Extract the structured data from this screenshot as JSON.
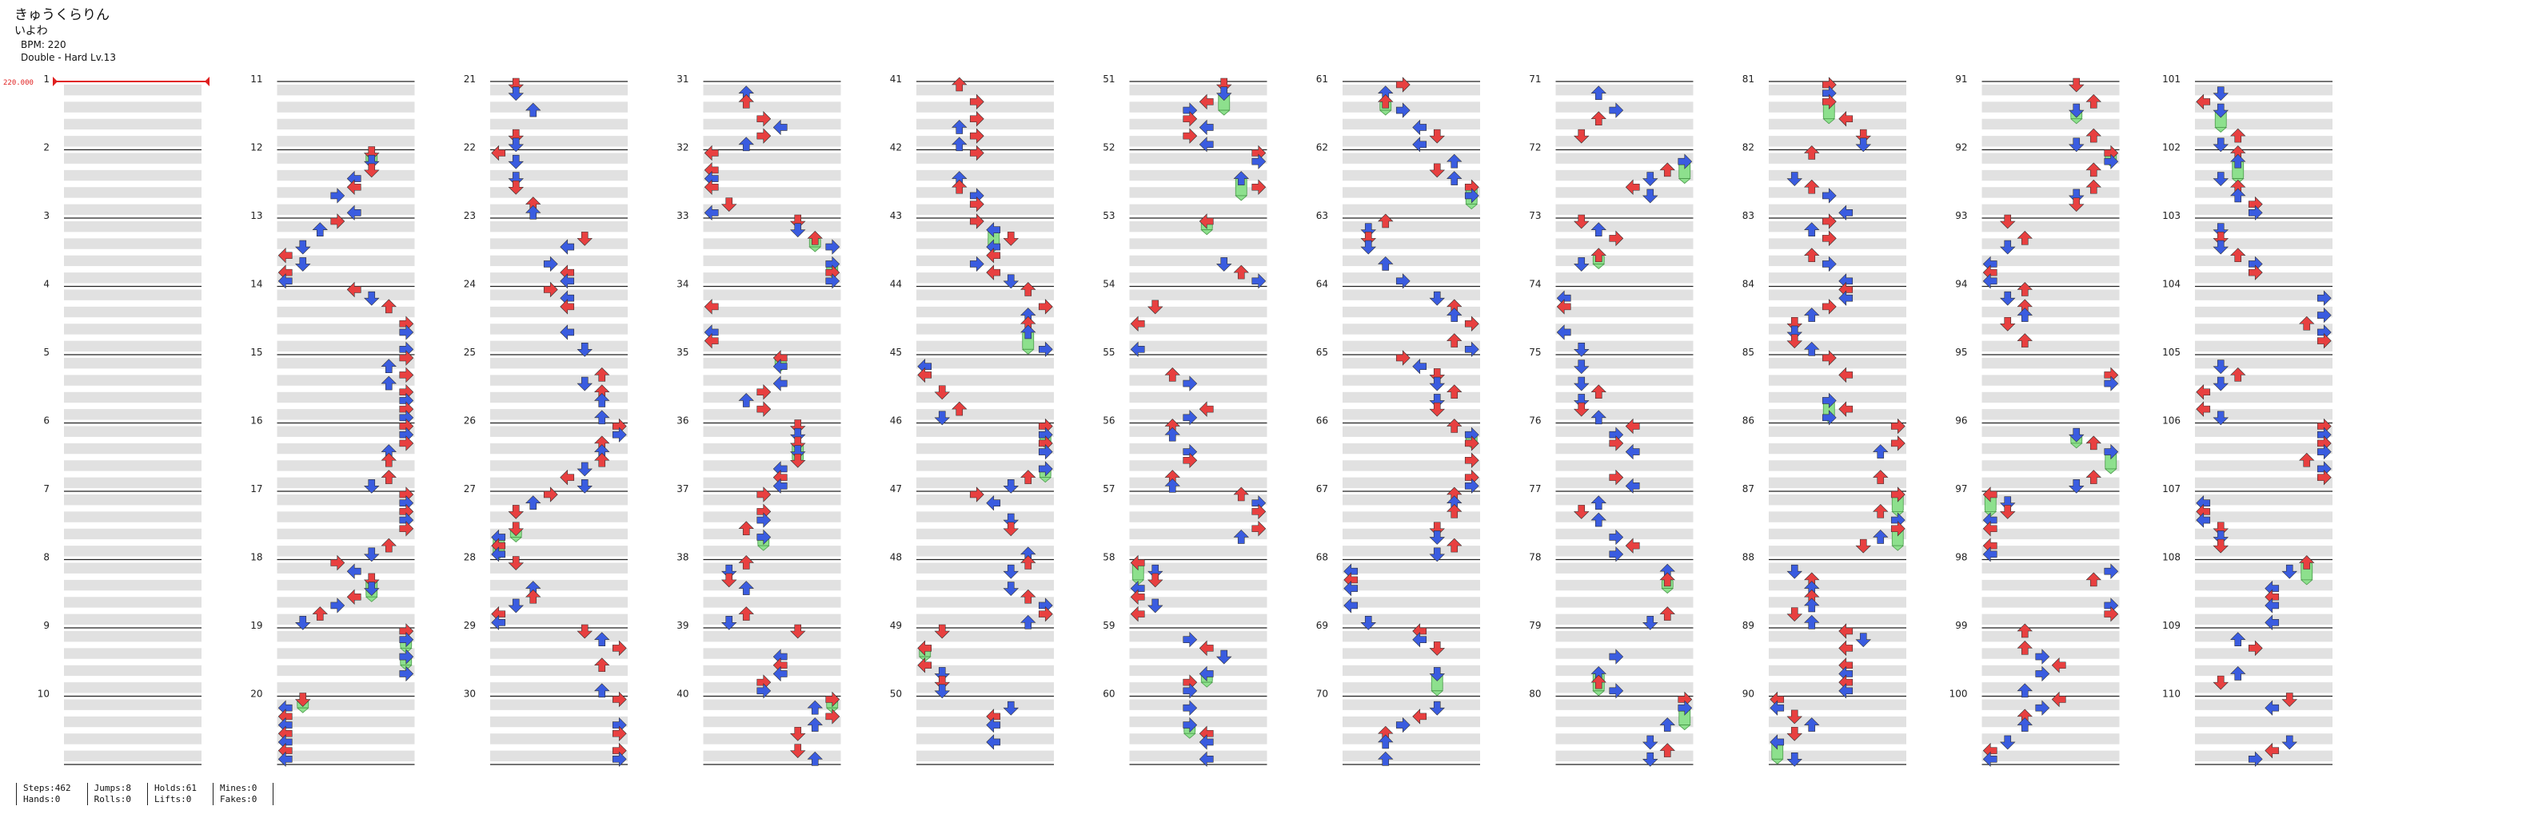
{
  "header": {
    "title": "きゅうくらりん",
    "artist": "いよわ",
    "bpm_line": "BPM: 220",
    "difficulty_line": "Double - Hard Lv.13"
  },
  "bpm_marker": {
    "label": "220.000",
    "color": "#e02020"
  },
  "measure_range": {
    "first": 1,
    "last": 110,
    "per_column": 10,
    "columns": 11
  },
  "measure_labels": [
    "1",
    "2",
    "3",
    "4",
    "5",
    "6",
    "7",
    "8",
    "9",
    "10",
    "11",
    "12",
    "13",
    "14",
    "15",
    "16",
    "17",
    "18",
    "19",
    "20",
    "21",
    "22",
    "23",
    "24",
    "25",
    "26",
    "27",
    "28",
    "29",
    "30",
    "31",
    "32",
    "33",
    "34",
    "35",
    "36",
    "37",
    "38",
    "39",
    "40",
    "41",
    "42",
    "43",
    "44",
    "45",
    "46",
    "47",
    "48",
    "49",
    "50",
    "51",
    "52",
    "53",
    "54",
    "55",
    "56",
    "57",
    "58",
    "59",
    "60",
    "61",
    "62",
    "63",
    "64",
    "65",
    "66",
    "67",
    "68",
    "69",
    "70",
    "71",
    "72",
    "73",
    "74",
    "75",
    "76",
    "77",
    "78",
    "79",
    "80",
    "81",
    "82",
    "83",
    "84",
    "85",
    "86",
    "87",
    "88",
    "89",
    "90",
    "91",
    "92",
    "93",
    "94",
    "95",
    "96",
    "97",
    "98",
    "99",
    "100",
    "101",
    "102",
    "103",
    "104",
    "105",
    "106",
    "107",
    "108",
    "109",
    "110"
  ],
  "note_colors": {
    "quarter": "#e84040",
    "eighth": "#3a5ce0",
    "twelfth": "#b040e0",
    "sixteenth": "#f0e040",
    "other": "#f09050",
    "hold": "#8de08d"
  },
  "stats": {
    "steps": "Steps:462",
    "hands": "Hands:0",
    "jumps": "Jumps:8",
    "rolls": "Rolls:0",
    "holds": "Holds:61",
    "lifts": "Lifts:0",
    "mines": "Mines:0",
    "fakes": "Fakes:0"
  }
}
